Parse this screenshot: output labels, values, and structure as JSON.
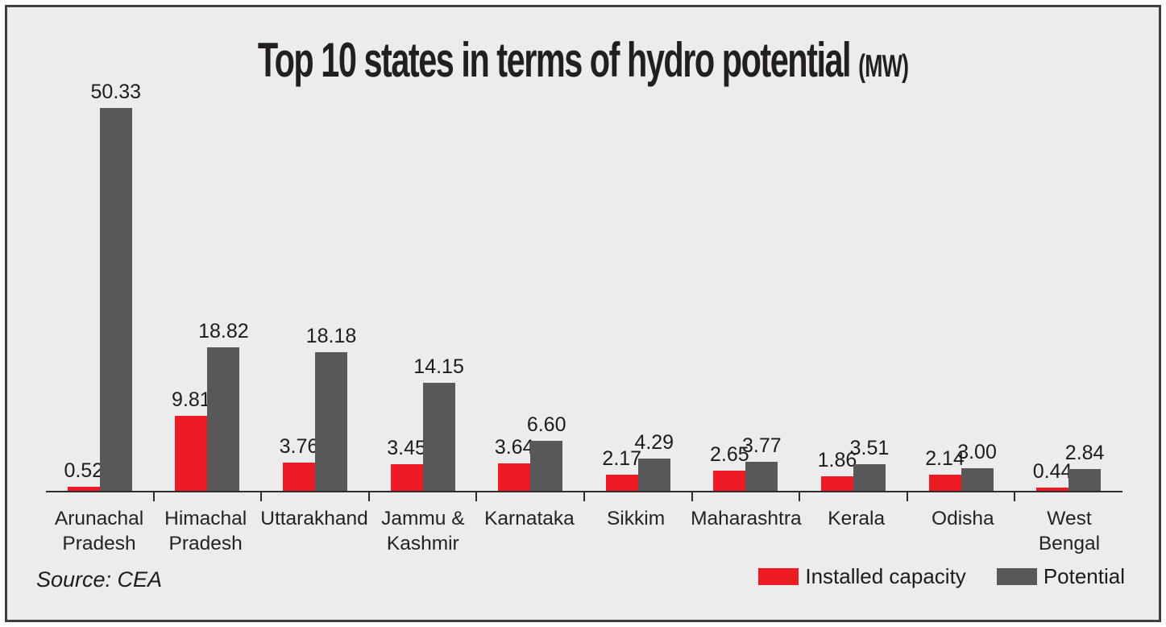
{
  "title": {
    "main": "Top 10 states in terms of hydro potential",
    "unit": "(MW)"
  },
  "source_label": "Source: CEA",
  "legend": [
    {
      "label": "Installed capacity",
      "color": "#ed1c24"
    },
    {
      "label": "Potential",
      "color": "#58585a"
    }
  ],
  "colors": {
    "installed": "#ed1c24",
    "potential": "#58585a",
    "background": "#ececec",
    "frame_border": "#404041",
    "axis": "#2e2e2e",
    "text": "#231f20"
  },
  "chart_data": {
    "type": "bar",
    "title": "Top 10 states in terms of hydro potential (MW)",
    "categories": [
      "Arunachal Pradesh",
      "Himachal Pradesh",
      "Uttarakhand",
      "Jammu & Kashmir",
      "Karnataka",
      "Sikkim",
      "Maharashtra",
      "Kerala",
      "Odisha",
      "West Bengal"
    ],
    "series": [
      {
        "name": "Installed capacity",
        "color": "#ed1c24",
        "values": [
          0.52,
          9.81,
          3.76,
          3.45,
          3.64,
          2.17,
          2.65,
          1.86,
          2.14,
          0.44
        ]
      },
      {
        "name": "Potential",
        "color": "#58585a",
        "values": [
          50.33,
          18.82,
          18.18,
          14.15,
          6.6,
          4.29,
          3.77,
          3.51,
          3.0,
          2.84
        ]
      }
    ],
    "value_labels": "each bar labeled with its value, 2 decimals",
    "xlabel": "",
    "ylabel": "",
    "ylim": [
      0,
      52
    ],
    "grid": false,
    "y_axis_shown": false,
    "legend_position": "bottom-right",
    "source": "Source: CEA"
  }
}
